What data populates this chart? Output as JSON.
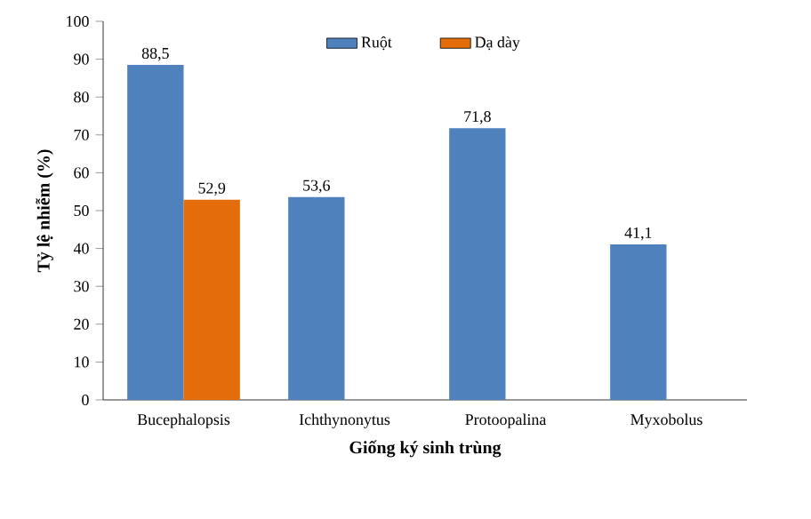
{
  "chart_data": {
    "type": "bar",
    "xlabel": "Giống ký sinh trùng",
    "ylabel": "Tỷ lệ nhiễm (%)",
    "categories": [
      "Bucephalopsis",
      "Ichthynonytus",
      "Protoopalina",
      "Myxobolus"
    ],
    "series": [
      {
        "name": "Ruột",
        "color": "#4f81bd",
        "values": [
          88.5,
          53.6,
          71.8,
          41.1
        ],
        "value_labels": [
          "88,5",
          "53,6",
          "71,8",
          "41,1"
        ]
      },
      {
        "name": "Dạ dày",
        "color": "#e46c0a",
        "values": [
          52.9,
          null,
          null,
          null
        ],
        "value_labels": [
          "52,9",
          null,
          null,
          null
        ]
      }
    ],
    "ylim": [
      0,
      100
    ],
    "yticks": [
      0,
      10,
      20,
      30,
      40,
      50,
      60,
      70,
      80,
      90,
      100
    ],
    "legend": "top",
    "grid": false
  }
}
